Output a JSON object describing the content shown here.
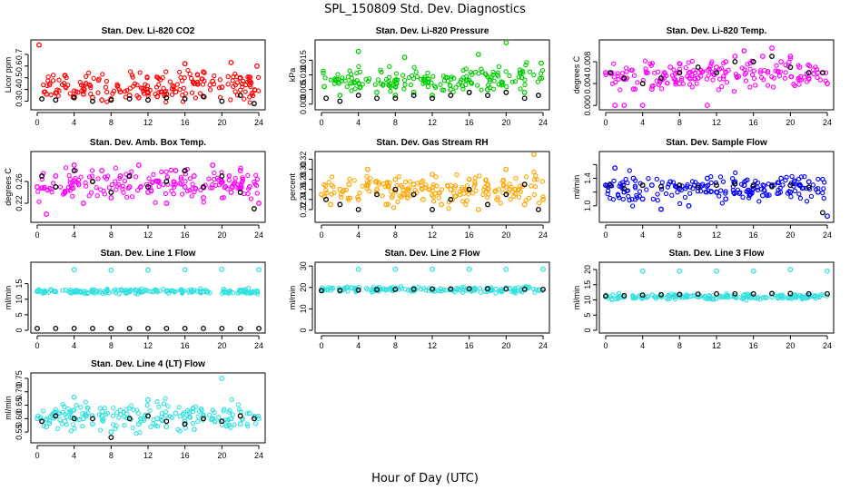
{
  "figure": {
    "title": "SPL_150809  Std. Dev. Diagnostics",
    "xlabel": "Hour of Day (UTC)"
  },
  "chart_data": [
    {
      "type": "scatter",
      "title": "Stan. Dev. Li-820 CO2",
      "ylabel": "Licor ppm",
      "xlim": [
        0,
        24
      ],
      "xticks": [
        0,
        4,
        8,
        12,
        16,
        20,
        24
      ],
      "ylim": [
        0.25,
        0.8
      ],
      "yticks": [
        0.3,
        0.4,
        0.5,
        0.6,
        0.7
      ],
      "ytick_labels": [
        "0.3",
        "0.4",
        "0.5",
        "0.6",
        "0.7"
      ],
      "color": "#ff0000",
      "series": [
        {
          "color": "#ff0000",
          "x": [
            0.2,
            1,
            2,
            3,
            4,
            5,
            6,
            7,
            8,
            9,
            10,
            11,
            12,
            13,
            14,
            15,
            16,
            17,
            18,
            19,
            20,
            21,
            22,
            23,
            23.8
          ],
          "y": [
            0.78,
            0.36,
            0.37,
            0.52,
            0.34,
            0.36,
            0.33,
            0.31,
            0.32,
            0.38,
            0.35,
            0.33,
            0.37,
            0.34,
            0.36,
            0.38,
            0.62,
            0.45,
            0.55,
            0.47,
            0.42,
            0.63,
            0.5,
            0.44,
            0.6
          ]
        },
        {
          "color": "#000000",
          "x": [
            0.5,
            2,
            4,
            6,
            8,
            10,
            12,
            14,
            16,
            18,
            20,
            22,
            23.5
          ],
          "y": [
            0.32,
            0.31,
            0.33,
            0.3,
            0.31,
            0.32,
            0.31,
            0.33,
            0.32,
            0.34,
            0.3,
            0.35,
            0.28
          ]
        }
      ]
    },
    {
      "type": "scatter",
      "title": "Stan. Dev. Li-820 Pressure",
      "ylabel": "kPa",
      "xlim": [
        0,
        24
      ],
      "xticks": [
        0,
        4,
        8,
        12,
        16,
        20,
        24
      ],
      "ylim": [
        -0.001,
        0.021
      ],
      "yticks": [
        0.0,
        0.005,
        0.01,
        0.015
      ],
      "ytick_labels": [
        "0.000",
        "0.005",
        "0.010",
        "0.015"
      ],
      "color": "#00cc00",
      "series": [
        {
          "color": "#00cc00",
          "x": [
            0.3,
            2,
            4,
            6,
            8,
            9,
            10,
            12,
            14,
            16,
            17,
            18,
            20,
            22,
            23.8
          ],
          "y": [
            0.006,
            0.003,
            0.018,
            0.004,
            0.003,
            0.016,
            0.004,
            0.003,
            0.005,
            0.004,
            0.017,
            0.005,
            0.021,
            0.004,
            0.014
          ]
        },
        {
          "color": "#000000",
          "x": [
            0.5,
            2,
            4,
            6,
            8,
            10,
            12,
            14,
            16,
            18,
            20,
            22,
            23.5
          ],
          "y": [
            0.002,
            0.001,
            0.003,
            0.002,
            0.002,
            0.003,
            0.002,
            0.003,
            0.004,
            0.003,
            0.004,
            0.002,
            0.003
          ]
        }
      ]
    },
    {
      "type": "scatter",
      "title": "Stan. Dev. Li-820 Temp.",
      "ylabel": "degrees C",
      "xlim": [
        0,
        24
      ],
      "xticks": [
        0,
        4,
        8,
        12,
        16,
        20,
        24
      ],
      "ylim": [
        -0.0003,
        0.0115
      ],
      "yticks": [
        0.0,
        0.004,
        0.008
      ],
      "ytick_labels": [
        "0.000",
        "0.004",
        "0.008"
      ],
      "color": "#ff00ff",
      "series": [
        {
          "color": "#ff00ff",
          "x": [
            0,
            1,
            2,
            3,
            4,
            5,
            6,
            7,
            8,
            9,
            10,
            11,
            12,
            13,
            14,
            15,
            16,
            17,
            18,
            19,
            20,
            21,
            22,
            23,
            24
          ],
          "y": [
            0.006,
            0.0,
            0.0,
            0.003,
            0.0,
            0.003,
            0.005,
            0.007,
            0.004,
            0.006,
            0.005,
            0.0,
            0.007,
            0.008,
            0.009,
            0.01,
            0.008,
            0.009,
            0.0105,
            0.008,
            0.009,
            0.007,
            0.005,
            0.006,
            0.004
          ]
        },
        {
          "color": "#000000",
          "x": [
            0.5,
            2,
            4,
            6,
            8,
            10,
            12,
            14,
            16,
            18,
            20,
            22,
            23.5
          ],
          "y": [
            0.006,
            0.005,
            0.004,
            0.005,
            0.006,
            0.007,
            0.006,
            0.008,
            0.008,
            0.009,
            0.007,
            0.006,
            0.006
          ]
        }
      ]
    },
    {
      "type": "scatter",
      "title": "Stan. Dev. Amb. Box Temp.",
      "ylabel": "degrees C",
      "xlim": [
        0,
        24
      ],
      "xticks": [
        0,
        4,
        8,
        12,
        16,
        20,
        24
      ],
      "ylim": [
        0.19,
        0.31
      ],
      "yticks": [
        0.22,
        0.26
      ],
      "ytick_labels": [
        "0.22",
        "0.26"
      ],
      "color": "#ff00ff",
      "series": [
        {
          "color": "#ff00ff",
          "x": [
            0,
            1,
            2,
            3,
            4,
            5,
            6,
            7,
            8,
            9,
            10,
            11,
            12,
            13,
            14,
            15,
            16,
            17,
            18,
            19,
            20,
            21,
            22,
            23,
            24
          ],
          "y": [
            0.25,
            0.2,
            0.27,
            0.24,
            0.29,
            0.22,
            0.26,
            0.28,
            0.23,
            0.27,
            0.25,
            0.29,
            0.24,
            0.26,
            0.22,
            0.28,
            0.25,
            0.27,
            0.23,
            0.29,
            0.26,
            0.24,
            0.28,
            0.25,
            0.22
          ]
        },
        {
          "color": "#000000",
          "x": [
            0.5,
            2,
            4,
            6,
            8,
            10,
            12,
            14,
            16,
            18,
            20,
            22,
            23.5
          ],
          "y": [
            0.27,
            0.25,
            0.28,
            0.26,
            0.24,
            0.27,
            0.25,
            0.26,
            0.28,
            0.25,
            0.27,
            0.24,
            0.21
          ]
        }
      ]
    },
    {
      "type": "scatter",
      "title": "Stan. Dev. Gas Stream RH",
      "ylabel": "percent",
      "xlim": [
        0,
        24
      ],
      "xticks": [
        0,
        4,
        8,
        12,
        16,
        20,
        24
      ],
      "ylim": [
        0.2,
        0.33
      ],
      "yticks": [
        0.22,
        0.24,
        0.26,
        0.28,
        0.3,
        0.32
      ],
      "ytick_labels": [
        "0.22",
        "0.24",
        "0.26",
        "0.28",
        "0.30",
        "0.32"
      ],
      "color": "#ffa500",
      "series": [
        {
          "color": "#ffa500",
          "x": [
            0,
            1,
            2,
            3,
            4,
            5,
            6,
            7,
            8,
            9,
            10,
            11,
            12,
            13,
            14,
            15,
            16,
            17,
            18,
            19,
            20,
            21,
            22,
            23,
            24
          ],
          "y": [
            0.25,
            0.23,
            0.26,
            0.27,
            0.24,
            0.3,
            0.26,
            0.23,
            0.28,
            0.25,
            0.27,
            0.24,
            0.29,
            0.23,
            0.26,
            0.25,
            0.28,
            0.22,
            0.27,
            0.24,
            0.3,
            0.26,
            0.23,
            0.33,
            0.24
          ]
        },
        {
          "color": "#000000",
          "x": [
            0.5,
            2,
            4,
            6,
            8,
            10,
            12,
            14,
            16,
            18,
            20,
            22,
            23.5
          ],
          "y": [
            0.24,
            0.23,
            0.22,
            0.25,
            0.26,
            0.25,
            0.22,
            0.24,
            0.26,
            0.23,
            0.25,
            0.27,
            0.22
          ]
        }
      ]
    },
    {
      "type": "scatter",
      "title": "Stan. Dev. Sample Flow",
      "ylabel": "ml/min",
      "xlim": [
        0,
        24
      ],
      "xticks": [
        0,
        4,
        8,
        12,
        16,
        20,
        24
      ],
      "ylim": [
        0.8,
        1.75
      ],
      "yticks": [
        1.0,
        1.2,
        1.4,
        1.6
      ],
      "ytick_labels": [
        "1.0",
        "",
        "1.4",
        ""
      ],
      "color": "#0000ff",
      "series": [
        {
          "color": "#0000ff",
          "x": [
            0,
            1,
            2,
            3,
            4,
            5,
            6,
            7,
            8,
            9,
            10,
            11,
            12,
            13,
            14,
            15,
            16,
            17,
            18,
            19,
            20,
            21,
            22,
            23,
            24
          ],
          "y": [
            1.3,
            1.55,
            1.2,
            1.4,
            1.1,
            1.3,
            0.95,
            1.35,
            1.25,
            1.0,
            1.3,
            1.4,
            1.2,
            1.1,
            1.35,
            1.3,
            1.25,
            1.15,
            1.3,
            1.4,
            1.2,
            1.3,
            1.35,
            1.2,
            0.85
          ]
        },
        {
          "color": "#000000",
          "x": [
            0.5,
            2,
            4,
            6,
            8,
            10,
            12,
            14,
            16,
            18,
            20,
            22,
            23.5
          ],
          "y": [
            1.3,
            1.25,
            1.3,
            1.28,
            1.3,
            1.27,
            1.3,
            1.32,
            1.3,
            1.28,
            1.3,
            1.27,
            0.9
          ]
        }
      ]
    },
    {
      "type": "scatter",
      "title": "Stan. Dev. Line 1 Flow",
      "ylabel": "ml/min",
      "xlim": [
        0,
        24
      ],
      "xticks": [
        0,
        4,
        8,
        12,
        16,
        20,
        24
      ],
      "ylim": [
        0,
        21
      ],
      "yticks": [
        0,
        5,
        10,
        15
      ],
      "ytick_labels": [
        "0",
        "5",
        "10",
        "15"
      ],
      "color": "#33e0e0",
      "series": [
        {
          "color": "#33e0e0",
          "x": [
            0,
            2,
            4,
            6,
            8,
            10,
            12,
            14,
            16,
            18,
            20,
            22,
            24
          ],
          "y": [
            12.5,
            12.4,
            19.5,
            12.3,
            19.3,
            12.4,
            19.4,
            12.5,
            19.5,
            12.4,
            19.6,
            12.3,
            19.5
          ]
        },
        {
          "color": "#000000",
          "x": [
            0,
            2,
            4,
            6,
            8,
            10,
            12,
            14,
            16,
            18,
            20,
            22,
            24
          ],
          "y": [
            0.6,
            0.6,
            0.6,
            0.6,
            0.6,
            0.6,
            0.6,
            0.6,
            0.6,
            0.6,
            0.6,
            0.6,
            0.6
          ]
        }
      ]
    },
    {
      "type": "scatter",
      "title": "Stan. Dev. Line 2 Flow",
      "ylabel": "ml/min",
      "xlim": [
        0,
        24
      ],
      "xticks": [
        0,
        4,
        8,
        12,
        16,
        20,
        24
      ],
      "ylim": [
        0,
        30.5
      ],
      "yticks": [
        0,
        10,
        20,
        30
      ],
      "ytick_labels": [
        "0",
        "10",
        "20",
        "30"
      ],
      "color": "#33e0e0",
      "series": [
        {
          "color": "#33e0e0",
          "x": [
            0,
            2,
            4,
            6,
            8,
            10,
            12,
            14,
            16,
            18,
            20,
            22,
            24
          ],
          "y": [
            19,
            19,
            28.5,
            19,
            28.5,
            19,
            28.5,
            19,
            28.5,
            19,
            28.5,
            19,
            28.5
          ]
        },
        {
          "color": "#000000",
          "x": [
            0,
            2,
            4,
            6,
            8,
            10,
            12,
            14,
            16,
            18,
            20,
            22,
            24
          ],
          "y": [
            18.5,
            18.6,
            18.8,
            19,
            19.1,
            19.2,
            19.3,
            19.3,
            19.4,
            19.4,
            19.3,
            19.2,
            19.1
          ]
        }
      ]
    },
    {
      "type": "scatter",
      "title": "Stan. Dev. Line 3 Flow",
      "ylabel": "ml/min",
      "xlim": [
        0,
        24
      ],
      "xticks": [
        0,
        4,
        8,
        12,
        16,
        20,
        24
      ],
      "ylim": [
        0,
        21.5
      ],
      "yticks": [
        0,
        5,
        10,
        15,
        20
      ],
      "ytick_labels": [
        "0",
        "5",
        "10",
        "15",
        "20"
      ],
      "color": "#33e0e0",
      "series": [
        {
          "color": "#33e0e0",
          "x": [
            0,
            2,
            4,
            6,
            8,
            10,
            12,
            14,
            16,
            18,
            20,
            22,
            24
          ],
          "y": [
            11,
            11,
            19.5,
            11,
            19.5,
            11,
            19.5,
            11,
            19.5,
            11,
            20,
            11,
            19.5
          ]
        },
        {
          "color": "#000000",
          "x": [
            0,
            2,
            4,
            6,
            8,
            10,
            12,
            14,
            16,
            18,
            20,
            22,
            24
          ],
          "y": [
            11.3,
            11.4,
            11.6,
            11.7,
            11.8,
            11.9,
            12,
            12,
            12,
            12.1,
            12.1,
            12,
            12
          ]
        }
      ]
    },
    {
      "type": "scatter",
      "title": "Stan. Dev. Line 4 (LT) Flow",
      "ylabel": "ml/min",
      "xlim": [
        0,
        24
      ],
      "xticks": [
        0,
        4,
        8,
        12,
        16,
        20,
        24
      ],
      "ylim": [
        0.52,
        0.76
      ],
      "yticks": [
        0.55,
        0.6,
        0.65,
        0.7,
        0.75
      ],
      "ytick_labels": [
        "0.55",
        "0.60",
        "0.65",
        "0.70",
        "0.75"
      ],
      "color": "#33e0e0",
      "series": [
        {
          "color": "#33e0e0",
          "x": [
            0,
            1,
            2,
            3,
            4,
            5,
            6,
            7,
            8,
            9,
            10,
            11,
            12,
            13,
            14,
            15,
            16,
            17,
            18,
            19,
            20,
            21,
            22,
            23,
            24
          ],
          "y": [
            0.6,
            0.57,
            0.62,
            0.59,
            0.68,
            0.6,
            0.58,
            0.61,
            0.55,
            0.63,
            0.6,
            0.58,
            0.67,
            0.6,
            0.57,
            0.62,
            0.59,
            0.56,
            0.61,
            0.6,
            0.75,
            0.6,
            0.58,
            0.62,
            0.6
          ]
        },
        {
          "color": "#000000",
          "x": [
            0.5,
            2,
            4,
            6,
            8,
            10,
            12,
            14,
            16,
            18,
            20,
            22,
            23.5
          ],
          "y": [
            0.59,
            0.61,
            0.6,
            0.6,
            0.53,
            0.6,
            0.61,
            0.59,
            0.58,
            0.6,
            0.59,
            0.61,
            0.6
          ]
        }
      ]
    }
  ]
}
